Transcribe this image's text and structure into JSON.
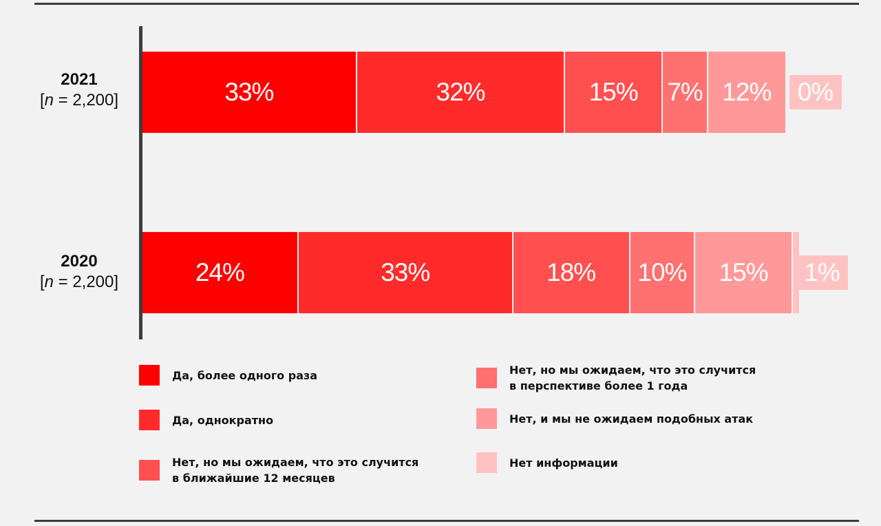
{
  "chart_data": {
    "type": "bar",
    "orientation": "horizontal",
    "stacked": true,
    "title": "",
    "xlabel": "",
    "ylabel": "",
    "xlim": [
      0,
      100
    ],
    "legend_placement": "bottom",
    "grid": false,
    "categories": [
      {
        "year": "2021",
        "n_prefix": "[",
        "n_var": "n",
        "n_suffix": " = 2,200]"
      },
      {
        "year": "2020",
        "n_prefix": "[",
        "n_var": "n",
        "n_suffix": " = 2,200]"
      }
    ],
    "series": [
      {
        "name": "Да, более одного раза",
        "color": "#ff0000",
        "values": [
          33,
          24
        ],
        "labels": [
          "33%",
          "24%"
        ]
      },
      {
        "name": "Да, однократно",
        "color": "#ff2b2b",
        "values": [
          32,
          33
        ],
        "labels": [
          "32%",
          "33%"
        ]
      },
      {
        "name": "Нет, но мы ожидаем, что это случится в ближайшие 12 месяцев",
        "color": "#ff4f4f",
        "values": [
          15,
          18
        ],
        "labels": [
          "15%",
          "18%"
        ]
      },
      {
        "name": "Нет, но мы ожидаем, что это случится в перспективе более 1 года",
        "color": "#ff7070",
        "values": [
          7,
          10
        ],
        "labels": [
          "7%",
          "10%"
        ]
      },
      {
        "name": "Нет, и мы не ожидаем подобных атак",
        "color": "#ff9999",
        "values": [
          12,
          15
        ],
        "labels": [
          "12%",
          "15%"
        ]
      },
      {
        "name": "Нет информации",
        "color": "#ffc2c2",
        "values": [
          0,
          1
        ],
        "labels": [
          "0%",
          "1%"
        ]
      }
    ],
    "legend": [
      {
        "lines": [
          "Да, более одного раза"
        ],
        "color": "#ff0000"
      },
      {
        "lines": [
          "Да, однократно"
        ],
        "color": "#ff2b2b"
      },
      {
        "lines": [
          "Нет, но мы ожидаем, что это случится",
          "в ближайшие 12 месяцев"
        ],
        "color": "#ff4f4f"
      },
      {
        "lines": [
          "Нет, но мы ожидаем, что это случится",
          "в перспективе более 1 года"
        ],
        "color": "#ff7070"
      },
      {
        "lines": [
          "Нет, и мы не ожидаем подобных атак"
        ],
        "color": "#ff9999"
      },
      {
        "lines": [
          "Нет информации"
        ],
        "color": "#ffc2c2"
      }
    ]
  }
}
